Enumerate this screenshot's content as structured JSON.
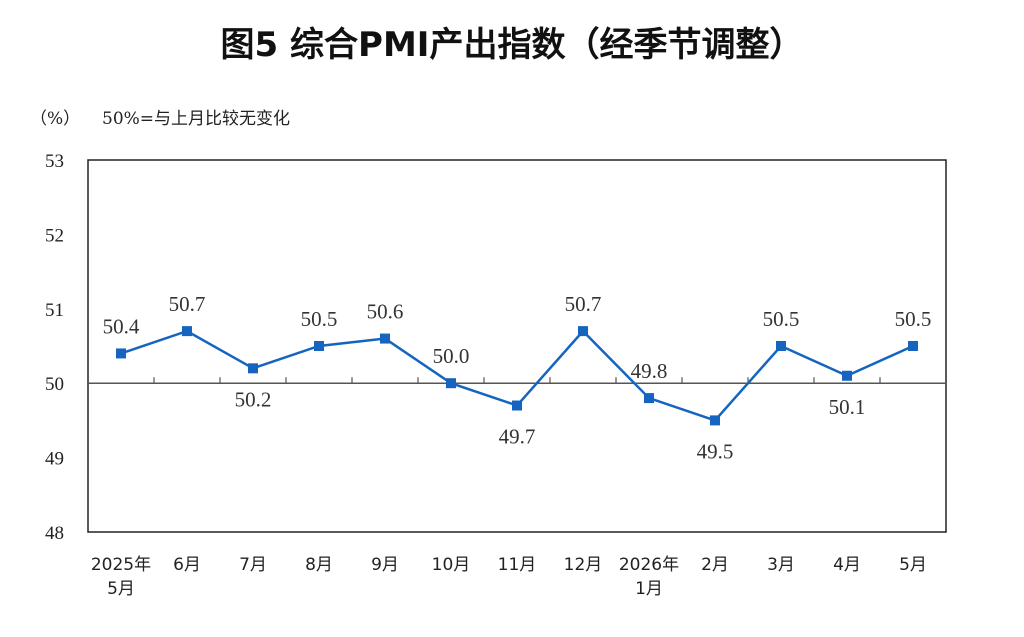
{
  "chart_data": {
    "type": "line",
    "title": "图5 综合PMI产出指数（经季节调整）",
    "unit_label": "（%）",
    "reference_note": "50%=与上月比较无变化",
    "ylim": [
      48,
      53
    ],
    "yticks": [
      "53",
      "52",
      "51",
      "50",
      "49",
      "48"
    ],
    "reference_line": 50,
    "categories": [
      [
        "2025年",
        "5月"
      ],
      [
        "6月"
      ],
      [
        "7月"
      ],
      [
        "8月"
      ],
      [
        "9月"
      ],
      [
        "10月"
      ],
      [
        "11月"
      ],
      [
        "12月"
      ],
      [
        "2026年",
        "1月"
      ],
      [
        "2月"
      ],
      [
        "3月"
      ],
      [
        "4月"
      ],
      [
        "5月"
      ]
    ],
    "values": [
      50.4,
      50.7,
      50.2,
      50.5,
      50.6,
      50.0,
      49.7,
      50.7,
      49.8,
      49.5,
      50.5,
      50.1,
      50.5
    ],
    "data_labels": [
      "50.4",
      "50.7",
      "50.2",
      "50.5",
      "50.6",
      "50.0",
      "49.7",
      "50.7",
      "49.8",
      "49.5",
      "50.5",
      "50.1",
      "50.5"
    ],
    "line_color": "#1565C0",
    "grid": false
  }
}
